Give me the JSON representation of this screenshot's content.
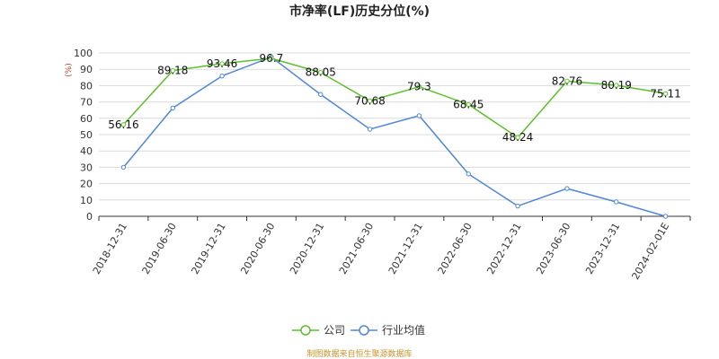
{
  "chart_data": {
    "type": "line",
    "title": "市净率(LF)历史分位(%)",
    "unit_label": "(%)",
    "categories": [
      "2018-12-31",
      "2019-06-30",
      "2019-12-31",
      "2020-06-30",
      "2020-12-31",
      "2021-06-30",
      "2021-12-31",
      "2022-06-30",
      "2022-12-31",
      "2023-06-30",
      "2023-12-31",
      "2024-02-01E"
    ],
    "ylim": [
      0,
      100
    ],
    "yticks": [
      0,
      10,
      20,
      30,
      40,
      50,
      60,
      70,
      80,
      90,
      100
    ],
    "grid": true,
    "legend_position": "bottom",
    "series": [
      {
        "name": "公司",
        "color": "#5cc02a",
        "values": [
          56.16,
          89.18,
          93.46,
          96.7,
          88.05,
          70.68,
          79.3,
          68.45,
          48.24,
          82.76,
          80.19,
          75.11
        ],
        "labels": [
          "56.16",
          "89.18",
          "93.46",
          "96.7",
          "88.05",
          "70.68",
          "79.3",
          "68.45",
          "48.24",
          "82.76",
          "80.19",
          "75.11"
        ]
      },
      {
        "name": "行业均值",
        "color": "#4f86d9",
        "values": [
          30.0,
          66.3,
          85.9,
          97.5,
          74.6,
          53.3,
          61.6,
          25.9,
          6.3,
          17.0,
          8.8,
          0.0
        ]
      }
    ],
    "source": "制图数据来自恒生聚源数据库"
  }
}
